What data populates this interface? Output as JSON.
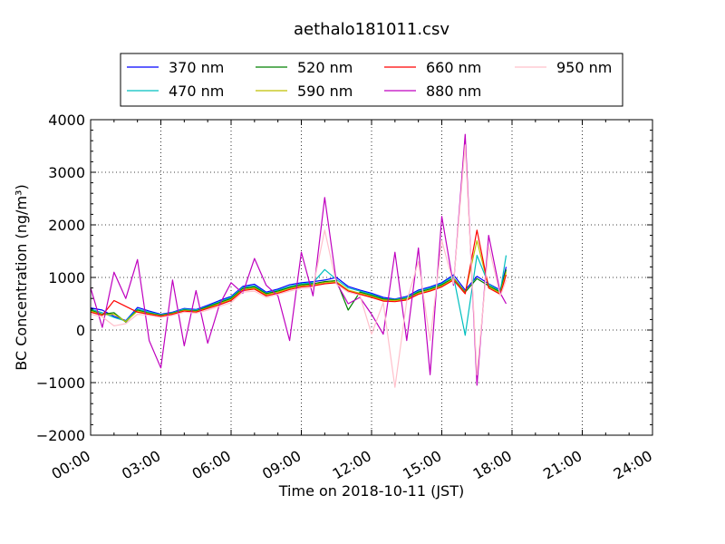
{
  "chart_data": {
    "type": "line",
    "title": "aethalo181011.csv",
    "xlabel": "Time on 2018-10-11 (JST)",
    "ylabel": "BC Concentration (ng/m³)",
    "xlim": [
      "00:00",
      "24:00"
    ],
    "ylim": [
      -2000,
      4000
    ],
    "x_tick_labels": [
      "00:00",
      "03:00",
      "06:00",
      "09:00",
      "12:00",
      "15:00",
      "18:00",
      "21:00",
      "24:00"
    ],
    "y_ticks": [
      -2000,
      -1000,
      0,
      1000,
      2000,
      3000,
      4000
    ],
    "y_tick_labels": [
      "−2000",
      "−1000",
      "0",
      "1000",
      "2000",
      "3000",
      "4000"
    ],
    "grid": true,
    "legend_position": "top",
    "x": [
      "00:00",
      "00:30",
      "01:00",
      "01:30",
      "02:00",
      "02:30",
      "03:00",
      "03:30",
      "04:00",
      "04:30",
      "05:00",
      "05:30",
      "06:00",
      "06:30",
      "07:00",
      "07:30",
      "08:00",
      "08:30",
      "09:00",
      "09:30",
      "10:00",
      "10:30",
      "11:00",
      "11:30",
      "12:00",
      "12:30",
      "13:00",
      "13:30",
      "14:00",
      "14:30",
      "15:00",
      "15:30",
      "16:00",
      "16:30",
      "17:00",
      "17:30",
      "17:45"
    ],
    "series": [
      {
        "name": "370 nm",
        "color": "#0000ff",
        "values": [
          420,
          380,
          260,
          180,
          430,
          360,
          300,
          340,
          410,
          390,
          470,
          560,
          640,
          830,
          870,
          720,
          780,
          860,
          900,
          920,
          950,
          1000,
          830,
          760,
          700,
          620,
          590,
          640,
          760,
          820,
          900,
          1050,
          760,
          1020,
          880,
          760,
          1200
        ]
      },
      {
        "name": "470 nm",
        "color": "#00bfbf",
        "values": [
          400,
          330,
          240,
          170,
          400,
          340,
          290,
          330,
          400,
          380,
          450,
          540,
          620,
          810,
          840,
          700,
          760,
          830,
          880,
          900,
          1150,
          960,
          800,
          740,
          680,
          600,
          580,
          620,
          740,
          800,
          880,
          1020,
          -100,
          1420,
          870,
          740,
          1420
        ]
      },
      {
        "name": "520 nm",
        "color": "#008000",
        "values": [
          380,
          300,
          330,
          150,
          380,
          320,
          280,
          320,
          380,
          360,
          440,
          520,
          600,
          790,
          820,
          690,
          740,
          810,
          860,
          880,
          920,
          940,
          380,
          720,
          660,
          590,
          570,
          600,
          720,
          780,
          860,
          990,
          720,
          980,
          840,
          720,
          1150
        ]
      },
      {
        "name": "590 nm",
        "color": "#bfbf00",
        "values": [
          360,
          290,
          300,
          160,
          360,
          310,
          270,
          310,
          370,
          350,
          420,
          500,
          580,
          770,
          800,
          670,
          720,
          790,
          840,
          860,
          900,
          920,
          760,
          700,
          640,
          570,
          560,
          590,
          700,
          760,
          840,
          970,
          700,
          1700,
          820,
          700,
          1100
        ]
      },
      {
        "name": "660 nm",
        "color": "#ff0000",
        "values": [
          340,
          280,
          560,
          450,
          340,
          300,
          260,
          300,
          360,
          340,
          410,
          480,
          560,
          750,
          780,
          650,
          700,
          770,
          820,
          840,
          880,
          900,
          740,
          680,
          620,
          550,
          540,
          570,
          680,
          740,
          820,
          950,
          690,
          1900,
          800,
          680,
          1050
        ]
      },
      {
        "name": "880 nm",
        "color": "#bf00bf",
        "values": [
          800,
          50,
          1100,
          600,
          1340,
          -200,
          -720,
          950,
          -300,
          750,
          -250,
          480,
          900,
          700,
          1360,
          850,
          650,
          -200,
          1480,
          650,
          2520,
          900,
          500,
          620,
          300,
          -80,
          1480,
          -200,
          1560,
          -850,
          2160,
          850,
          3720,
          -1050,
          1800,
          700,
          500
        ]
      },
      {
        "name": "950 nm",
        "color": "#ffc0cb",
        "values": [
          300,
          250,
          80,
          120,
          300,
          280,
          240,
          280,
          340,
          320,
          380,
          450,
          520,
          720,
          740,
          620,
          680,
          740,
          790,
          810,
          1900,
          870,
          720,
          660,
          -80,
          520,
          -1090,
          550,
          1300,
          -200,
          1700,
          880,
          3520,
          -850,
          1600,
          650,
          950
        ]
      }
    ]
  }
}
